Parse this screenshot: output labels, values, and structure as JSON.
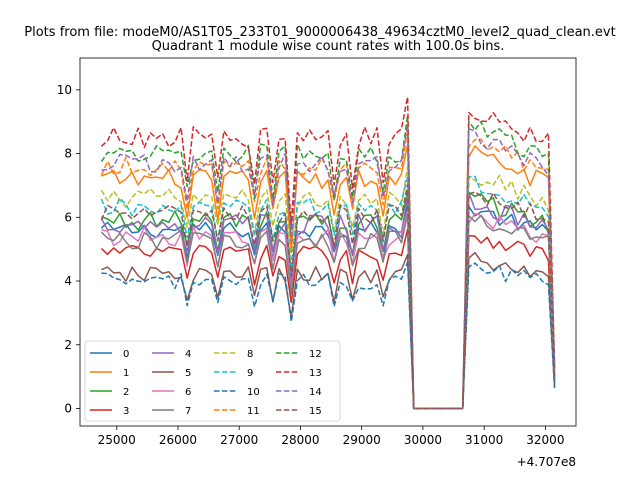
{
  "chart_data": {
    "type": "line",
    "suptitle": "Plots from file: modeM0/AS1T05_233T01_9000006438_49634cztM0_level2_quad_clean.evt",
    "title": "Quadrant 1 module wise count rates with 100.0s bins.",
    "xlabel": "",
    "ylabel": "",
    "x_offset_label": "+4.707e8",
    "xlim": [
      24400,
      32500
    ],
    "ylim": [
      -0.55,
      11.0
    ],
    "xticks": [
      25000,
      26000,
      27000,
      28000,
      29000,
      30000,
      31000,
      32000
    ],
    "yticks": [
      0,
      2,
      4,
      6,
      8,
      10
    ],
    "legend": {
      "position": "lower-left",
      "ncol": 4
    },
    "series": [
      {
        "name": "0",
        "color": "#1f77b4",
        "style": "solid",
        "level": 5.6,
        "amp": 0.25,
        "dip": 0.12
      },
      {
        "name": "1",
        "color": "#ff7f0e",
        "style": "solid",
        "level": 7.2,
        "amp": 0.3,
        "dip": 0.12
      },
      {
        "name": "2",
        "color": "#2ca02c",
        "style": "solid",
        "level": 5.9,
        "amp": 0.3,
        "dip": 0.13
      },
      {
        "name": "3",
        "color": "#d62728",
        "style": "solid",
        "level": 4.9,
        "amp": 0.25,
        "dip": 0.15
      },
      {
        "name": "4",
        "color": "#9467bd",
        "style": "solid",
        "level": 5.8,
        "amp": 0.3,
        "dip": 0.12
      },
      {
        "name": "5",
        "color": "#8c564b",
        "style": "solid",
        "level": 4.2,
        "amp": 0.25,
        "dip": 0.15
      },
      {
        "name": "6",
        "color": "#e377c2",
        "style": "solid",
        "level": 5.4,
        "amp": 0.3,
        "dip": 0.12
      },
      {
        "name": "7",
        "color": "#7f7f7f",
        "style": "solid",
        "level": 5.3,
        "amp": 0.3,
        "dip": 0.13
      },
      {
        "name": "8",
        "color": "#bcbd22",
        "style": "dashed",
        "level": 6.6,
        "amp": 0.3,
        "dip": 0.12
      },
      {
        "name": "9",
        "color": "#17becf",
        "style": "dashed",
        "level": 6.3,
        "amp": 0.3,
        "dip": 0.12
      },
      {
        "name": "10",
        "color": "#1f77b4",
        "style": "dashed",
        "level": 4.0,
        "amp": 0.25,
        "dip": 0.15
      },
      {
        "name": "11",
        "color": "#ff7f0e",
        "style": "dashed",
        "level": 7.6,
        "amp": 0.3,
        "dip": 0.12
      },
      {
        "name": "12",
        "color": "#2ca02c",
        "style": "dashed",
        "level": 8.0,
        "amp": 0.3,
        "dip": 0.12
      },
      {
        "name": "13",
        "color": "#d62728",
        "style": "dashed",
        "level": 8.5,
        "amp": 0.35,
        "dip": 0.14
      },
      {
        "name": "14",
        "color": "#9467bd",
        "style": "dashed",
        "level": 7.7,
        "amp": 0.3,
        "dip": 0.12
      },
      {
        "name": "15",
        "color": "#8c564b",
        "style": "dashed",
        "level": 6.1,
        "amp": 0.3,
        "dip": 0.12
      }
    ],
    "time_bins": {
      "first_start": 24750,
      "first_end": 29750,
      "gap_start": 29850,
      "gap_end": 30650,
      "second_start": 30750,
      "second_end": 32150,
      "bin_width": 100,
      "dip_times": [
        26150,
        26650,
        27250,
        27550,
        27850,
        28550,
        28850,
        29350
      ],
      "second_segment_scale_start": 1.12,
      "second_segment_scale_end": 0.98
    }
  }
}
